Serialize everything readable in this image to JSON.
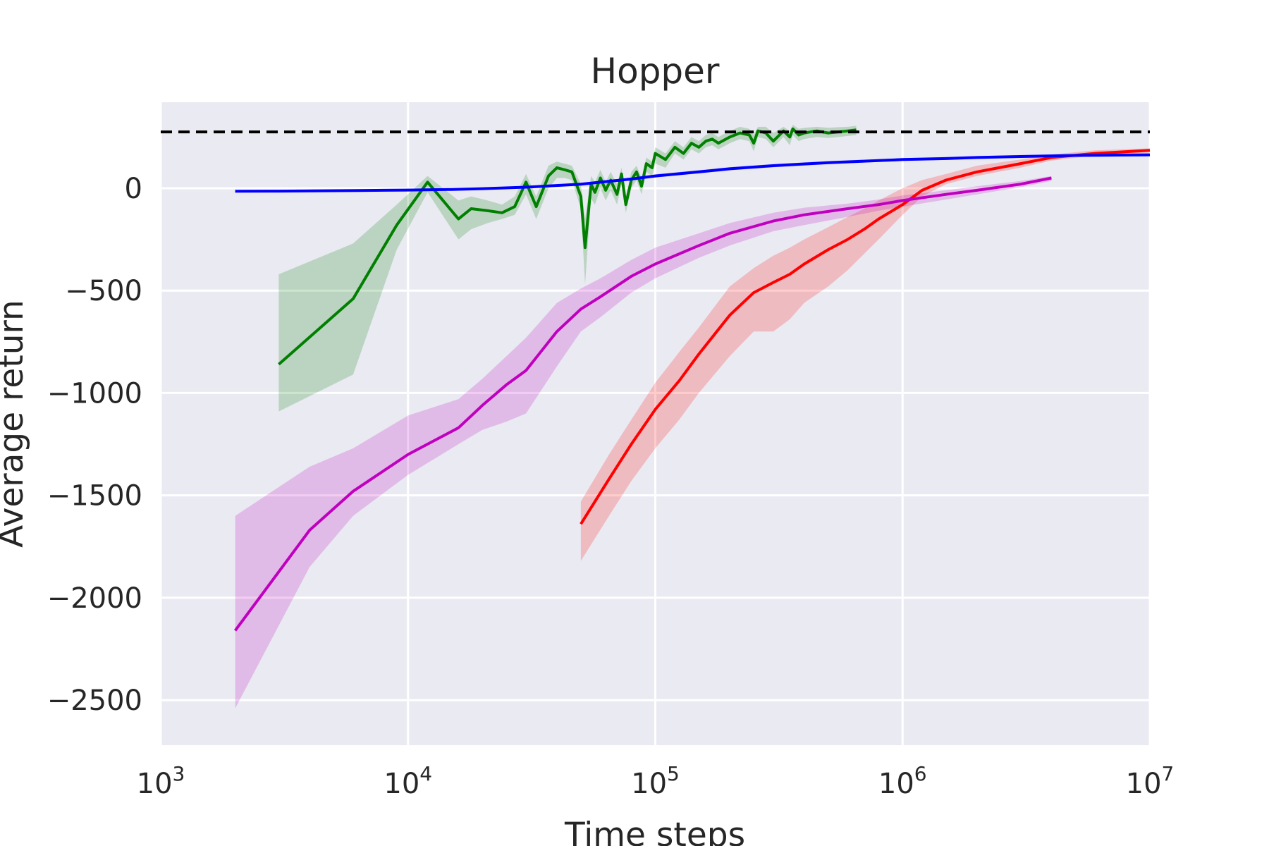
{
  "chart_data": {
    "type": "line",
    "title": "Hopper",
    "xlabel": "Time steps",
    "ylabel": "Average return",
    "x_scale": "log",
    "xlim": [
      1000,
      10000000
    ],
    "ylim": [
      -2720,
      420
    ],
    "x_ticks": [
      {
        "value": 1000,
        "base": "10",
        "exp": "3"
      },
      {
        "value": 10000,
        "base": "10",
        "exp": "4"
      },
      {
        "value": 100000,
        "base": "10",
        "exp": "5"
      },
      {
        "value": 1000000,
        "base": "10",
        "exp": "6"
      },
      {
        "value": 10000000,
        "base": "10",
        "exp": "7"
      }
    ],
    "y_ticks": [
      {
        "value": 0,
        "label": "0"
      },
      {
        "value": -500,
        "label": "−500"
      },
      {
        "value": -1000,
        "label": "−1000"
      },
      {
        "value": -1500,
        "label": "−1500"
      },
      {
        "value": -2000,
        "label": "−2000"
      },
      {
        "value": -2500,
        "label": "−2500"
      }
    ],
    "grid": true,
    "reference_line": {
      "y": 275,
      "style": "dashed",
      "color": "#000000"
    },
    "series": [
      {
        "color": "#ff0000",
        "x": [
          50000,
          65000,
          80000,
          100000,
          125000,
          150000,
          200000,
          250000,
          300000,
          350000,
          400000,
          500000,
          600000,
          700000,
          800000,
          1000000,
          1200000,
          1500000,
          2000000,
          3000000,
          4000000,
          6000000,
          10000000
        ],
        "y": [
          -1640,
          -1420,
          -1250,
          -1080,
          -940,
          -810,
          -620,
          -510,
          -460,
          -420,
          -370,
          -300,
          -250,
          -200,
          -150,
          -80,
          -10,
          40,
          80,
          120,
          150,
          170,
          185
        ],
        "lower": [
          -1820,
          -1600,
          -1430,
          -1270,
          -1130,
          -1000,
          -820,
          -700,
          -700,
          -640,
          -560,
          -480,
          -400,
          -320,
          -250,
          -130,
          -40,
          20,
          60,
          100,
          135,
          160,
          175
        ],
        "upper": [
          -1530,
          -1300,
          -1130,
          -950,
          -800,
          -680,
          -480,
          -390,
          -330,
          -290,
          -250,
          -190,
          -140,
          -100,
          -60,
          0,
          40,
          70,
          110,
          140,
          165,
          185,
          195
        ]
      },
      {
        "color": "#bf00bf",
        "x": [
          2000,
          4000,
          6000,
          10000,
          16000,
          20000,
          25000,
          30000,
          40000,
          50000,
          60000,
          80000,
          100000,
          150000,
          200000,
          300000,
          400000,
          600000,
          800000,
          1000000,
          1500000,
          2000000,
          3000000,
          4000000
        ],
        "y": [
          -2160,
          -1670,
          -1480,
          -1300,
          -1170,
          -1060,
          -960,
          -890,
          -700,
          -590,
          -530,
          -430,
          -370,
          -280,
          -220,
          -160,
          -130,
          -100,
          -80,
          -60,
          -30,
          -10,
          20,
          50
        ],
        "lower": [
          -2540,
          -1850,
          -1600,
          -1400,
          -1250,
          -1180,
          -1140,
          -1100,
          -870,
          -700,
          -630,
          -510,
          -440,
          -340,
          -280,
          -210,
          -180,
          -140,
          -110,
          -90,
          -55,
          -30,
          5,
          35
        ],
        "upper": [
          -1600,
          -1360,
          -1270,
          -1110,
          -1030,
          -930,
          -820,
          -730,
          -560,
          -490,
          -440,
          -350,
          -290,
          -220,
          -170,
          -120,
          -95,
          -75,
          -55,
          -35,
          -10,
          10,
          35,
          60
        ]
      },
      {
        "color": "#007f00",
        "x": [
          3000,
          6000,
          9000,
          12000,
          16000,
          18000,
          21000,
          24000,
          27000,
          30000,
          33000,
          37000,
          40000,
          43000,
          46000,
          50000,
          52000,
          55000,
          57000,
          60000,
          63000,
          66000,
          70000,
          73000,
          76000,
          80000,
          84000,
          88000,
          92000,
          97000,
          100000,
          110000,
          120000,
          130000,
          140000,
          150000,
          160000,
          170000,
          180000,
          200000,
          220000,
          240000,
          250000,
          260000,
          280000,
          300000,
          330000,
          350000,
          360000,
          380000,
          400000,
          450000,
          500000,
          550000,
          600000,
          650000
        ],
        "y": [
          -860,
          -540,
          -180,
          30,
          -150,
          -100,
          -110,
          -120,
          -90,
          30,
          -90,
          60,
          100,
          90,
          80,
          -40,
          -290,
          20,
          -20,
          50,
          -10,
          40,
          -30,
          70,
          -80,
          40,
          80,
          10,
          120,
          100,
          170,
          140,
          200,
          170,
          220,
          200,
          230,
          240,
          220,
          250,
          270,
          260,
          220,
          280,
          270,
          230,
          280,
          250,
          290,
          260,
          270,
          280,
          270,
          275,
          280,
          285
        ],
        "lower": [
          -1090,
          -910,
          -300,
          -20,
          -250,
          -200,
          -170,
          -150,
          -130,
          -30,
          -150,
          0,
          50,
          50,
          40,
          -100,
          -470,
          -50,
          -80,
          0,
          -60,
          -10,
          -80,
          20,
          -120,
          0,
          40,
          -30,
          80,
          60,
          120,
          100,
          170,
          140,
          190,
          170,
          200,
          210,
          190,
          220,
          240,
          230,
          180,
          250,
          240,
          200,
          250,
          210,
          260,
          230,
          240,
          250,
          245,
          250,
          255,
          260
        ],
        "upper": [
          -420,
          -270,
          -80,
          60,
          -60,
          -40,
          -60,
          -80,
          -40,
          70,
          -40,
          110,
          130,
          120,
          110,
          20,
          -150,
          60,
          30,
          90,
          30,
          80,
          20,
          100,
          -40,
          80,
          110,
          50,
          150,
          130,
          200,
          170,
          230,
          200,
          250,
          230,
          260,
          270,
          250,
          280,
          300,
          290,
          260,
          300,
          300,
          270,
          300,
          280,
          310,
          290,
          295,
          300,
          295,
          298,
          300,
          305
        ]
      },
      {
        "color": "#0000ff",
        "x": [
          2000,
          3000,
          5000,
          8000,
          10000,
          15000,
          20000,
          30000,
          50000,
          80000,
          100000,
          150000,
          200000,
          300000,
          500000,
          800000,
          1000000,
          1500000,
          2000000,
          3000000,
          5000000,
          8000000,
          10000000
        ],
        "y": [
          -15,
          -14,
          -12,
          -10,
          -9,
          -6,
          -2,
          5,
          20,
          45,
          60,
          80,
          95,
          110,
          125,
          135,
          140,
          145,
          150,
          155,
          160,
          162,
          163
        ],
        "lower": [
          -20,
          -19,
          -17,
          -15,
          -14,
          -11,
          -7,
          0,
          14,
          38,
          52,
          72,
          87,
          102,
          117,
          128,
          133,
          138,
          143,
          148,
          153,
          155,
          156
        ],
        "upper": [
          -10,
          -9,
          -7,
          -5,
          -4,
          -1,
          3,
          10,
          26,
          52,
          68,
          88,
          103,
          118,
          133,
          142,
          147,
          152,
          157,
          162,
          167,
          169,
          170
        ]
      }
    ]
  }
}
